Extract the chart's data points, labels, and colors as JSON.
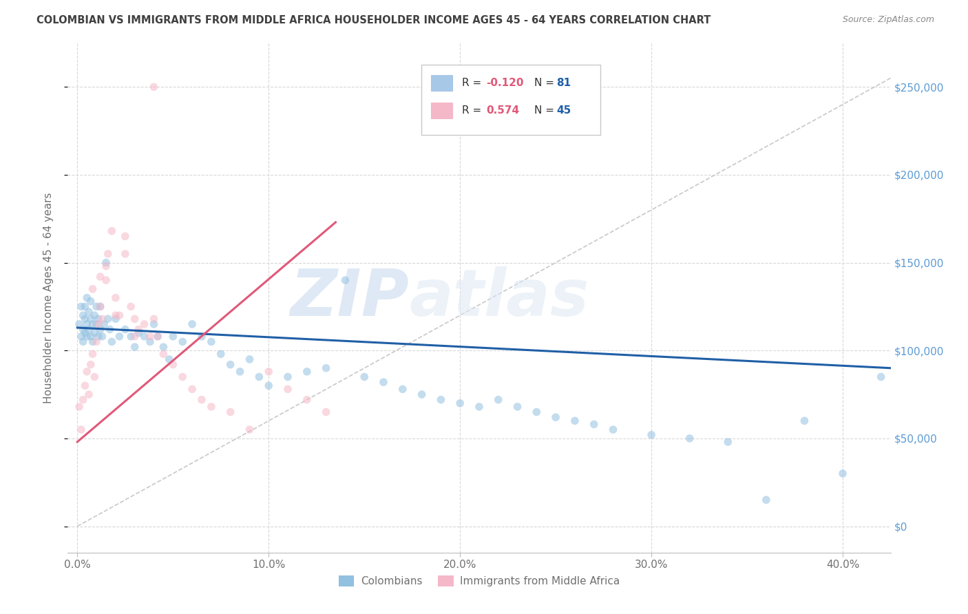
{
  "title": "COLOMBIAN VS IMMIGRANTS FROM MIDDLE AFRICA HOUSEHOLDER INCOME AGES 45 - 64 YEARS CORRELATION CHART",
  "source": "Source: ZipAtlas.com",
  "xlabel_ticks": [
    "0.0%",
    "10.0%",
    "20.0%",
    "30.0%",
    "40.0%"
  ],
  "xlabel_tick_vals": [
    0.0,
    0.1,
    0.2,
    0.3,
    0.4
  ],
  "ylabel_tick_vals": [
    0,
    50000,
    100000,
    150000,
    200000,
    250000
  ],
  "right_tick_labels": [
    "$0",
    "$50,000",
    "$100,000",
    "$150,000",
    "$200,000",
    "$250,000"
  ],
  "xlim": [
    -0.005,
    0.425
  ],
  "ylim": [
    -15000,
    275000
  ],
  "ylabel": "Householder Income Ages 45 - 64 years",
  "watermark_zip": "ZIP",
  "watermark_atlas": "atlas",
  "legend_blue_R": "-0.120",
  "legend_blue_N": "81",
  "legend_pink_R": "0.574",
  "legend_pink_N": "45",
  "blue_scatter_x": [
    0.001,
    0.002,
    0.002,
    0.003,
    0.003,
    0.003,
    0.004,
    0.004,
    0.004,
    0.005,
    0.005,
    0.005,
    0.006,
    0.006,
    0.007,
    0.007,
    0.007,
    0.008,
    0.008,
    0.009,
    0.009,
    0.01,
    0.01,
    0.011,
    0.011,
    0.012,
    0.012,
    0.013,
    0.014,
    0.015,
    0.016,
    0.017,
    0.018,
    0.02,
    0.022,
    0.025,
    0.028,
    0.03,
    0.032,
    0.035,
    0.038,
    0.04,
    0.042,
    0.045,
    0.048,
    0.05,
    0.055,
    0.06,
    0.065,
    0.07,
    0.075,
    0.08,
    0.085,
    0.09,
    0.095,
    0.1,
    0.11,
    0.12,
    0.13,
    0.14,
    0.15,
    0.16,
    0.17,
    0.18,
    0.19,
    0.2,
    0.21,
    0.22,
    0.23,
    0.24,
    0.25,
    0.26,
    0.27,
    0.28,
    0.3,
    0.32,
    0.34,
    0.36,
    0.38,
    0.4,
    0.42
  ],
  "blue_scatter_y": [
    115000,
    125000,
    108000,
    120000,
    112000,
    105000,
    118000,
    110000,
    125000,
    130000,
    115000,
    108000,
    122000,
    112000,
    118000,
    128000,
    108000,
    115000,
    105000,
    120000,
    110000,
    125000,
    115000,
    118000,
    108000,
    125000,
    112000,
    108000,
    115000,
    150000,
    118000,
    112000,
    105000,
    118000,
    108000,
    112000,
    108000,
    102000,
    110000,
    108000,
    105000,
    115000,
    108000,
    102000,
    95000,
    108000,
    105000,
    115000,
    108000,
    105000,
    98000,
    92000,
    88000,
    95000,
    85000,
    80000,
    85000,
    88000,
    90000,
    140000,
    85000,
    82000,
    78000,
    75000,
    72000,
    70000,
    68000,
    72000,
    68000,
    65000,
    62000,
    60000,
    58000,
    55000,
    52000,
    50000,
    48000,
    15000,
    60000,
    30000,
    85000
  ],
  "pink_scatter_x": [
    0.001,
    0.002,
    0.003,
    0.004,
    0.005,
    0.006,
    0.007,
    0.008,
    0.009,
    0.01,
    0.011,
    0.012,
    0.013,
    0.015,
    0.016,
    0.018,
    0.02,
    0.022,
    0.025,
    0.028,
    0.03,
    0.032,
    0.035,
    0.038,
    0.04,
    0.042,
    0.045,
    0.05,
    0.055,
    0.06,
    0.065,
    0.07,
    0.08,
    0.09,
    0.1,
    0.11,
    0.12,
    0.13,
    0.008,
    0.012,
    0.015,
    0.02,
    0.025,
    0.03,
    0.04
  ],
  "pink_scatter_y": [
    68000,
    55000,
    72000,
    80000,
    88000,
    75000,
    92000,
    98000,
    85000,
    105000,
    115000,
    125000,
    118000,
    140000,
    155000,
    168000,
    130000,
    120000,
    155000,
    125000,
    118000,
    112000,
    115000,
    108000,
    118000,
    108000,
    98000,
    92000,
    85000,
    78000,
    72000,
    68000,
    65000,
    55000,
    88000,
    78000,
    72000,
    65000,
    135000,
    142000,
    148000,
    120000,
    165000,
    108000,
    250000
  ],
  "blue_line_x": [
    0.0,
    0.425
  ],
  "blue_line_y": [
    113000,
    90000
  ],
  "pink_line_x": [
    0.0,
    0.135
  ],
  "pink_line_y": [
    48000,
    173000
  ],
  "diagonal_line_x": [
    0.0,
    0.425
  ],
  "diagonal_line_y": [
    0,
    255000
  ],
  "blue_color": "#92c0e0",
  "pink_color": "#f5b8c8",
  "blue_line_color": "#1f5fa6",
  "pink_line_color": "#e05878",
  "diagonal_color": "#c8c8c8",
  "bg_color": "#ffffff",
  "grid_color": "#d8d8d8",
  "title_color": "#404040",
  "axis_label_color": "#707070",
  "right_tick_color": "#5b9bd5",
  "scatter_size": 70,
  "scatter_alpha": 0.55
}
